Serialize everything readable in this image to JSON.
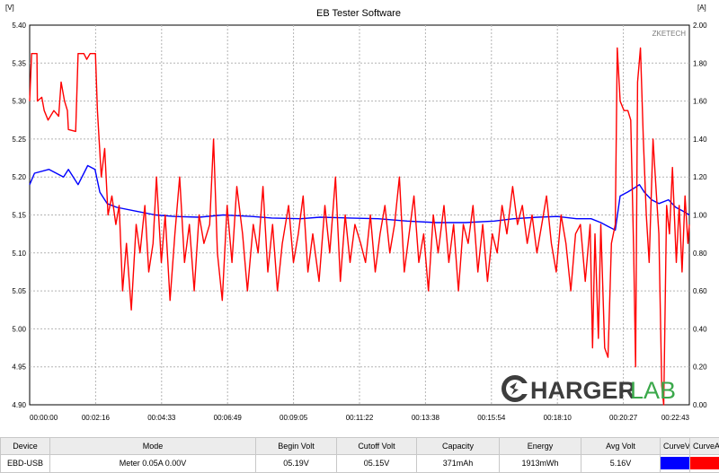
{
  "chart_data": {
    "type": "line",
    "title": "EB Tester Software",
    "brand": "ZKETECH",
    "watermark": {
      "left": "HARGER",
      "right": "LAB"
    },
    "y_left": {
      "unit": "[V]",
      "lim": [
        4.9,
        5.4
      ],
      "ticks": [
        "5.40",
        "5.35",
        "5.30",
        "5.25",
        "5.20",
        "5.15",
        "5.10",
        "5.05",
        "5.00",
        "4.95",
        "4.90"
      ]
    },
    "y_right": {
      "unit": "[A]",
      "lim": [
        0.0,
        2.0
      ],
      "ticks": [
        "2.00",
        "1.80",
        "1.60",
        "1.40",
        "1.20",
        "1.00",
        "0.80",
        "0.60",
        "0.40",
        "0.20",
        "0.00"
      ]
    },
    "x_lim": [
      0,
      1363
    ],
    "x_ticks": [
      "00:00:00",
      "00:02:16",
      "00:04:33",
      "00:06:49",
      "00:09:05",
      "00:11:22",
      "00:13:38",
      "00:15:54",
      "00:18:10",
      "00:20:27",
      "00:22:43"
    ],
    "series": [
      {
        "name": "CurveV",
        "color": "#0000ff",
        "axis": "left",
        "points": [
          [
            0,
            5.19
          ],
          [
            10,
            5.205
          ],
          [
            40,
            5.21
          ],
          [
            70,
            5.2
          ],
          [
            80,
            5.21
          ],
          [
            100,
            5.19
          ],
          [
            120,
            5.215
          ],
          [
            135,
            5.21
          ],
          [
            145,
            5.18
          ],
          [
            160,
            5.165
          ],
          [
            180,
            5.16
          ],
          [
            220,
            5.155
          ],
          [
            260,
            5.15
          ],
          [
            300,
            5.148
          ],
          [
            350,
            5.147
          ],
          [
            400,
            5.15
          ],
          [
            460,
            5.148
          ],
          [
            500,
            5.146
          ],
          [
            560,
            5.145
          ],
          [
            600,
            5.147
          ],
          [
            660,
            5.146
          ],
          [
            720,
            5.145
          ],
          [
            780,
            5.142
          ],
          [
            840,
            5.14
          ],
          [
            900,
            5.14
          ],
          [
            960,
            5.142
          ],
          [
            1000,
            5.145
          ],
          [
            1050,
            5.147
          ],
          [
            1090,
            5.148
          ],
          [
            1130,
            5.145
          ],
          [
            1160,
            5.145
          ],
          [
            1180,
            5.14
          ],
          [
            1195,
            5.135
          ],
          [
            1210,
            5.13
          ],
          [
            1220,
            5.175
          ],
          [
            1235,
            5.18
          ],
          [
            1248,
            5.185
          ],
          [
            1260,
            5.19
          ],
          [
            1270,
            5.18
          ],
          [
            1285,
            5.17
          ],
          [
            1300,
            5.165
          ],
          [
            1320,
            5.17
          ],
          [
            1335,
            5.16
          ],
          [
            1350,
            5.155
          ],
          [
            1363,
            5.15
          ]
        ]
      },
      {
        "name": "CurveA",
        "color": "#ff0000",
        "axis": "right",
        "points": [
          [
            0,
            1.6
          ],
          [
            4,
            1.85
          ],
          [
            15,
            1.85
          ],
          [
            16,
            1.6
          ],
          [
            25,
            1.62
          ],
          [
            30,
            1.55
          ],
          [
            38,
            1.5
          ],
          [
            50,
            1.55
          ],
          [
            60,
            1.52
          ],
          [
            65,
            1.7
          ],
          [
            72,
            1.6
          ],
          [
            78,
            1.55
          ],
          [
            80,
            1.45
          ],
          [
            95,
            1.44
          ],
          [
            100,
            1.85
          ],
          [
            112,
            1.85
          ],
          [
            118,
            1.82
          ],
          [
            125,
            1.85
          ],
          [
            136,
            1.85
          ],
          [
            140,
            1.55
          ],
          [
            148,
            1.2
          ],
          [
            155,
            1.35
          ],
          [
            162,
            1.0
          ],
          [
            170,
            1.1
          ],
          [
            178,
            0.95
          ],
          [
            185,
            1.05
          ],
          [
            192,
            0.6
          ],
          [
            200,
            0.85
          ],
          [
            210,
            0.5
          ],
          [
            220,
            0.95
          ],
          [
            228,
            0.8
          ],
          [
            238,
            1.05
          ],
          [
            246,
            0.7
          ],
          [
            255,
            0.85
          ],
          [
            262,
            1.2
          ],
          [
            272,
            0.75
          ],
          [
            280,
            1.0
          ],
          [
            290,
            0.55
          ],
          [
            300,
            0.9
          ],
          [
            310,
            1.2
          ],
          [
            320,
            0.75
          ],
          [
            330,
            0.95
          ],
          [
            340,
            0.6
          ],
          [
            350,
            1.0
          ],
          [
            360,
            0.85
          ],
          [
            372,
            0.95
          ],
          [
            380,
            1.4
          ],
          [
            388,
            0.8
          ],
          [
            398,
            0.55
          ],
          [
            408,
            1.05
          ],
          [
            418,
            0.75
          ],
          [
            428,
            1.15
          ],
          [
            440,
            0.9
          ],
          [
            450,
            0.6
          ],
          [
            462,
            0.95
          ],
          [
            472,
            0.8
          ],
          [
            482,
            1.15
          ],
          [
            492,
            0.7
          ],
          [
            502,
            0.95
          ],
          [
            512,
            0.6
          ],
          [
            522,
            0.85
          ],
          [
            535,
            1.05
          ],
          [
            545,
            0.75
          ],
          [
            555,
            0.9
          ],
          [
            565,
            1.1
          ],
          [
            575,
            0.7
          ],
          [
            585,
            0.9
          ],
          [
            598,
            0.65
          ],
          [
            610,
            1.05
          ],
          [
            620,
            0.8
          ],
          [
            632,
            1.2
          ],
          [
            642,
            0.65
          ],
          [
            652,
            1.0
          ],
          [
            662,
            0.75
          ],
          [
            672,
            0.95
          ],
          [
            684,
            0.85
          ],
          [
            694,
            0.75
          ],
          [
            704,
            1.0
          ],
          [
            714,
            0.7
          ],
          [
            724,
            0.9
          ],
          [
            734,
            1.05
          ],
          [
            744,
            0.8
          ],
          [
            754,
            0.95
          ],
          [
            764,
            1.2
          ],
          [
            774,
            0.7
          ],
          [
            784,
            0.9
          ],
          [
            794,
            1.1
          ],
          [
            804,
            0.75
          ],
          [
            814,
            0.9
          ],
          [
            824,
            0.6
          ],
          [
            834,
            1.0
          ],
          [
            844,
            0.8
          ],
          [
            856,
            1.05
          ],
          [
            866,
            0.75
          ],
          [
            876,
            0.95
          ],
          [
            886,
            0.6
          ],
          [
            896,
            0.95
          ],
          [
            906,
            0.85
          ],
          [
            916,
            1.05
          ],
          [
            926,
            0.7
          ],
          [
            936,
            0.95
          ],
          [
            946,
            0.65
          ],
          [
            956,
            0.9
          ],
          [
            966,
            0.8
          ],
          [
            976,
            1.05
          ],
          [
            986,
            0.9
          ],
          [
            998,
            1.15
          ],
          [
            1008,
            0.95
          ],
          [
            1018,
            1.05
          ],
          [
            1028,
            0.85
          ],
          [
            1038,
            1.0
          ],
          [
            1048,
            0.8
          ],
          [
            1058,
            0.95
          ],
          [
            1068,
            1.1
          ],
          [
            1078,
            0.85
          ],
          [
            1088,
            0.7
          ],
          [
            1098,
            1.0
          ],
          [
            1108,
            0.85
          ],
          [
            1118,
            0.6
          ],
          [
            1128,
            0.9
          ],
          [
            1138,
            0.95
          ],
          [
            1148,
            0.65
          ],
          [
            1158,
            0.95
          ],
          [
            1163,
            0.3
          ],
          [
            1168,
            0.9
          ],
          [
            1175,
            0.35
          ],
          [
            1180,
            0.95
          ],
          [
            1188,
            0.3
          ],
          [
            1195,
            0.25
          ],
          [
            1202,
            0.85
          ],
          [
            1210,
            0.95
          ],
          [
            1214,
            1.88
          ],
          [
            1220,
            1.6
          ],
          [
            1228,
            1.55
          ],
          [
            1236,
            1.55
          ],
          [
            1242,
            1.5
          ],
          [
            1248,
            0.8
          ],
          [
            1252,
            0.2
          ],
          [
            1256,
            1.7
          ],
          [
            1262,
            1.88
          ],
          [
            1268,
            1.4
          ],
          [
            1274,
            1.0
          ],
          [
            1280,
            0.75
          ],
          [
            1288,
            1.4
          ],
          [
            1294,
            1.15
          ],
          [
            1300,
            0.9
          ],
          [
            1306,
            0.1
          ],
          [
            1310,
            0.0
          ],
          [
            1316,
            1.05
          ],
          [
            1322,
            0.9
          ],
          [
            1328,
            1.25
          ],
          [
            1336,
            0.75
          ],
          [
            1342,
            1.05
          ],
          [
            1348,
            0.7
          ],
          [
            1354,
            1.1
          ],
          [
            1360,
            0.85
          ],
          [
            1363,
            0.95
          ]
        ]
      }
    ]
  },
  "table": {
    "headers": [
      "Device",
      "Mode",
      "Begin Volt",
      "Cutoff Volt",
      "Capacity",
      "Energy",
      "Avg Volt",
      "CurveV",
      "CurveA"
    ],
    "values": [
      "EBD-USB",
      "Meter 0.05A 0.00V",
      "05.19V",
      "05.15V",
      "371mAh",
      "1913mWh",
      "5.16V",
      "",
      ""
    ],
    "curve_colors": [
      "#0000ff",
      "#ff0000"
    ]
  }
}
